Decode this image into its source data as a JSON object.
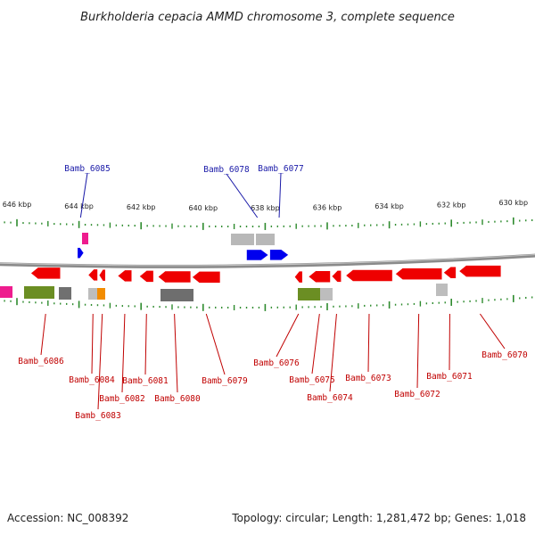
{
  "title": "Burkholderia cepacia AMMD chromosome 3, complete sequence",
  "footer": {
    "accession_label": "Accession:",
    "accession": "NC_008392",
    "topology_label": "Topology:",
    "topology": "circular",
    "length_label": "Length:",
    "length": "1,281,472 bp",
    "genes_label": "Genes:",
    "genes": "1,018"
  },
  "colors": {
    "backbone": "#888888",
    "tick": "#2e8b2e",
    "forward_label": "#1a1aa8",
    "reverse_label": "#c00000",
    "gene_forward": "#0000ee",
    "gene_reverse": "#ee0000"
  },
  "scale": {
    "unit": "kbp",
    "ticks": [
      {
        "value": 646,
        "label": "646 kbp"
      },
      {
        "value": 644,
        "label": "644 kbp"
      },
      {
        "value": 642,
        "label": "642 kbp"
      },
      {
        "value": 640,
        "label": "640 kbp"
      },
      {
        "value": 638,
        "label": "638 kbp"
      },
      {
        "value": 636,
        "label": "636 kbp"
      },
      {
        "value": 634,
        "label": "634 kbp"
      },
      {
        "value": 632,
        "label": "632 kbp"
      },
      {
        "value": 630,
        "label": "630 kbp"
      }
    ]
  },
  "genes": {
    "forward": [
      {
        "name": "Bamb_6085",
        "start_kbp": 644.05,
        "end_kbp": 643.85
      },
      {
        "name": "Bamb_6078",
        "start_kbp": 638.6,
        "end_kbp": 637.9
      },
      {
        "name": "Bamb_6077",
        "start_kbp": 637.85,
        "end_kbp": 637.25
      }
    ],
    "reverse": [
      {
        "name": "Bamb_6086",
        "start_kbp": 645.55,
        "end_kbp": 644.6
      },
      {
        "name": "Bamb_6084",
        "start_kbp": 643.7,
        "end_kbp": 643.4
      },
      {
        "name": "Bamb_6083",
        "start_kbp": 643.35,
        "end_kbp": 643.15
      },
      {
        "name": "Bamb_6082",
        "start_kbp": 642.75,
        "end_kbp": 642.3
      },
      {
        "name": "Bamb_6081",
        "start_kbp": 642.05,
        "end_kbp": 641.6
      },
      {
        "name": "Bamb_6080",
        "start_kbp": 641.45,
        "end_kbp": 640.4
      },
      {
        "name": "Bamb_6079",
        "start_kbp": 640.35,
        "end_kbp": 639.45
      },
      {
        "name": "Bamb_6076",
        "start_kbp": 637.05,
        "end_kbp": 636.8
      },
      {
        "name": "Bamb_6075",
        "start_kbp": 636.6,
        "end_kbp": 635.9
      },
      {
        "name": "Bamb_6074",
        "start_kbp": 635.85,
        "end_kbp": 635.55
      },
      {
        "name": "Bamb_6073",
        "start_kbp": 635.4,
        "end_kbp": 633.9
      },
      {
        "name": "Bamb_6072",
        "start_kbp": 633.8,
        "end_kbp": 632.3
      },
      {
        "name": "Bamb_6071",
        "start_kbp": 632.25,
        "end_kbp": 631.85
      },
      {
        "name": "Bamb_6070",
        "start_kbp": 631.75,
        "end_kbp": 630.4
      }
    ]
  }
}
